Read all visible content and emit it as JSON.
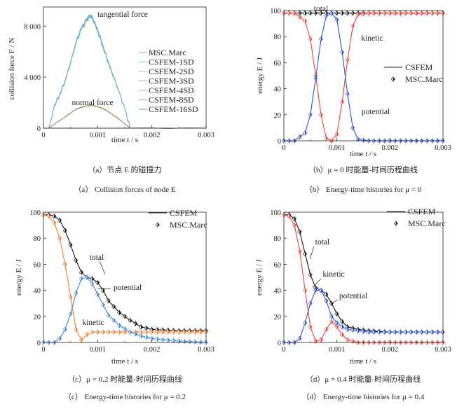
{
  "captions": {
    "a_cn": "（a）节点 E 的碰撞力",
    "a_en": "（a） Collision forces of node E",
    "b_cn": "（b）μ = 0 时能量-时间历程曲线",
    "b_en": "（b） Energy-time histories for μ = 0",
    "c_cn": "（c）μ = 0.2 时能量-时间历程曲线",
    "c_en": "（c） Energy-time histories for μ = 0.2",
    "d_cn": "（d）μ = 0.4 时能量-时间历程曲线",
    "d_en": "（d） Energy-time histories for μ = 0.4"
  },
  "colors": {
    "red": "#e8433a",
    "blue": "#2f4fd0",
    "orange": "#ef7d2a",
    "black": "#111111",
    "teal": "#6fb3c9",
    "olive": "#8a8a5a"
  },
  "chart_data": [
    {
      "id": "a",
      "type": "line",
      "xlabel": "time t / s",
      "ylabel": "collision force F / N",
      "xlim": [
        0,
        0.003
      ],
      "ylim": [
        0,
        9500
      ],
      "xticks": [
        "0",
        "0.001",
        "0.002",
        "0.003"
      ],
      "yticks": [
        "0",
        "4 000",
        "8 000"
      ],
      "legend": [
        "MSC.Marc",
        "CSFEM-1SD",
        "CSFEM-2SD",
        "CSFEM-3SD",
        "CSFEM-4SD",
        "CSFEM-8SD",
        "CSFEM-16SD"
      ],
      "annotations": [
        "tangential force",
        "normal force"
      ],
      "series": [
        {
          "role": "tangential",
          "x": [
            0.0001,
            0.00015,
            0.0002,
            0.0003,
            0.0004,
            0.0005,
            0.0006,
            0.0007,
            0.0008,
            0.00085,
            0.0009,
            0.001,
            0.0011,
            0.0012,
            0.0013,
            0.0014,
            0.0015,
            0.0016
          ],
          "values": [
            0,
            800,
            1800,
            2700,
            3800,
            5200,
            6800,
            7900,
            8600,
            8900,
            8800,
            7800,
            6500,
            5200,
            4000,
            2800,
            1500,
            0
          ]
        },
        {
          "role": "normal",
          "x": [
            0.0001,
            0.0002,
            0.0003,
            0.0004,
            0.0005,
            0.0006,
            0.0007,
            0.0008,
            0.0009,
            0.001,
            0.0011,
            0.0012,
            0.0013,
            0.0014,
            0.0015,
            0.0016,
            0.003
          ],
          "values": [
            0,
            300,
            600,
            900,
            1200,
            1500,
            1650,
            1750,
            1800,
            1700,
            1550,
            1300,
            1000,
            700,
            350,
            0,
            0
          ]
        }
      ]
    },
    {
      "id": "b",
      "type": "line",
      "xlabel": "time t / s",
      "ylabel": "energy E / J",
      "xlim": [
        0,
        0.003
      ],
      "ylim": [
        0,
        100
      ],
      "xticks": [
        "0",
        "0.001",
        "0.002",
        "0.003"
      ],
      "yticks": [
        "0",
        "20",
        "40",
        "60",
        "80",
        "100"
      ],
      "legend": [
        "CSFEM",
        "MSC.Marc"
      ],
      "annotations": [
        "total",
        "kinetic",
        "potential"
      ],
      "series": [
        {
          "name": "total",
          "x": [
            0,
            0.0005,
            0.001,
            0.0015,
            0.002,
            0.0025,
            0.003
          ],
          "values": [
            98,
            98,
            98,
            98,
            98,
            98,
            98
          ]
        },
        {
          "name": "kinetic",
          "x": [
            0,
            0.0002,
            0.0004,
            0.0005,
            0.0006,
            0.0007,
            0.0008,
            0.0009,
            0.001,
            0.0011,
            0.0012,
            0.0013,
            0.0014,
            0.0016,
            0.002,
            0.003
          ],
          "values": [
            98,
            98,
            92,
            78,
            50,
            20,
            2,
            0,
            5,
            30,
            62,
            88,
            97,
            98,
            98,
            98
          ]
        },
        {
          "name": "potential",
          "x": [
            0,
            0.0002,
            0.0004,
            0.0005,
            0.0006,
            0.0007,
            0.0008,
            0.0009,
            0.001,
            0.0011,
            0.0012,
            0.0013,
            0.0014,
            0.0016,
            0.002,
            0.003
          ],
          "values": [
            0,
            0,
            6,
            20,
            48,
            78,
            96,
            98,
            93,
            68,
            36,
            10,
            1,
            0,
            0,
            0
          ]
        }
      ]
    },
    {
      "id": "c",
      "type": "line",
      "xlabel": "time t / s",
      "ylabel": "energy E / J",
      "xlim": [
        0,
        0.003
      ],
      "ylim": [
        0,
        100
      ],
      "xticks": [
        "0",
        "0.001",
        "0.002",
        "0.003"
      ],
      "yticks": [
        "0",
        "20",
        "40",
        "60",
        "80",
        "100"
      ],
      "legend": [
        "CSFEM",
        "MSC.Marc"
      ],
      "annotations": [
        "total",
        "potential",
        "kinetic"
      ],
      "series": [
        {
          "name": "total",
          "x": [
            0,
            0.0001,
            0.0002,
            0.0003,
            0.0004,
            0.0005,
            0.0006,
            0.0007,
            0.0008,
            0.0009,
            0.001,
            0.0011,
            0.0012,
            0.0014,
            0.0016,
            0.0018,
            0.002,
            0.0025,
            0.003
          ],
          "values": [
            98,
            98,
            97,
            94,
            86,
            75,
            63,
            54,
            50,
            49,
            46,
            40,
            32,
            23,
            17,
            12,
            10,
            9,
            9
          ]
        },
        {
          "name": "kinetic",
          "x": [
            0,
            0.0001,
            0.0002,
            0.0003,
            0.0004,
            0.0005,
            0.0006,
            0.0007,
            0.0008,
            0.0009,
            0.001,
            0.0012,
            0.0015,
            0.002,
            0.003
          ],
          "values": [
            98,
            97,
            92,
            80,
            60,
            35,
            10,
            2,
            6,
            8,
            8,
            8,
            8,
            8,
            8
          ]
        },
        {
          "name": "potential",
          "x": [
            0,
            0.0002,
            0.0003,
            0.0004,
            0.0005,
            0.0006,
            0.0007,
            0.0008,
            0.0009,
            0.001,
            0.0011,
            0.0012,
            0.0014,
            0.0016,
            0.0018,
            0.002,
            0.0025,
            0.003
          ],
          "values": [
            0,
            0,
            3,
            10,
            22,
            38,
            49,
            50,
            45,
            37,
            29,
            21,
            13,
            8,
            5,
            3,
            1,
            0
          ]
        }
      ]
    },
    {
      "id": "d",
      "type": "line",
      "xlabel": "time t / s",
      "ylabel": "energy E / J",
      "xlim": [
        0,
        0.003
      ],
      "ylim": [
        0,
        100
      ],
      "xticks": [
        "0",
        "0.001",
        "0.002",
        "0.003"
      ],
      "yticks": [
        "0",
        "20",
        "40",
        "60",
        "80",
        "100"
      ],
      "legend": [
        "CSFEM",
        "MSC.Marc"
      ],
      "annotations": [
        "total",
        "kinetic",
        "potential"
      ],
      "series": [
        {
          "name": "total",
          "x": [
            0,
            0.0001,
            0.0002,
            0.0003,
            0.0004,
            0.0005,
            0.0006,
            0.0007,
            0.0008,
            0.0009,
            0.001,
            0.0011,
            0.0012,
            0.0014,
            0.0016,
            0.002,
            0.0025,
            0.003
          ],
          "values": [
            98,
            98,
            95,
            85,
            68,
            52,
            42,
            40,
            37,
            30,
            22,
            16,
            12,
            10,
            9,
            8,
            8,
            8
          ]
        },
        {
          "name": "kinetic",
          "x": [
            0,
            0.0001,
            0.0002,
            0.0003,
            0.0004,
            0.0005,
            0.0006,
            0.0007,
            0.0008,
            0.0009,
            0.001,
            0.0011,
            0.0012,
            0.0014,
            0.0016,
            0.002,
            0.003
          ],
          "values": [
            98,
            97,
            90,
            70,
            40,
            12,
            1,
            2,
            10,
            16,
            12,
            6,
            2,
            0,
            0,
            0,
            0
          ]
        },
        {
          "name": "potential",
          "x": [
            0,
            0.0002,
            0.0003,
            0.0004,
            0.0005,
            0.0006,
            0.0007,
            0.0008,
            0.0009,
            0.001,
            0.0011,
            0.0012,
            0.0014,
            0.0016,
            0.002,
            0.0025,
            0.003
          ],
          "values": [
            0,
            0,
            3,
            15,
            30,
            40,
            40,
            32,
            20,
            15,
            12,
            10,
            9,
            8,
            8,
            8,
            8
          ]
        }
      ]
    }
  ]
}
